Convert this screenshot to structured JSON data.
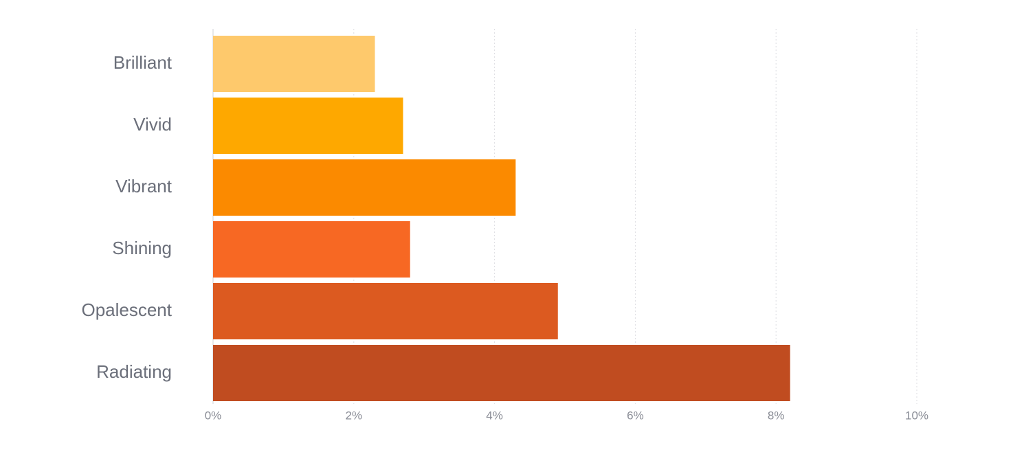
{
  "chart_data": {
    "type": "hbar",
    "categories": [
      "Brilliant",
      "Vivid",
      "Vibrant",
      "Shining",
      "Opalescent",
      "Radiating"
    ],
    "values": [
      2.3,
      2.7,
      4.3,
      2.8,
      4.9,
      8.2
    ],
    "colors": [
      "#fec96c",
      "#fea800",
      "#fb8a00",
      "#f76823",
      "#dc5a20",
      "#c04c20"
    ],
    "xlim": [
      0,
      10
    ],
    "xticks": [
      {
        "value": 0,
        "label": "0%"
      },
      {
        "value": 2,
        "label": "2%"
      },
      {
        "value": 4,
        "label": "4%"
      },
      {
        "value": 6,
        "label": "6%"
      },
      {
        "value": 8,
        "label": "8%"
      },
      {
        "value": 10,
        "label": "10%"
      }
    ],
    "grid": true
  }
}
